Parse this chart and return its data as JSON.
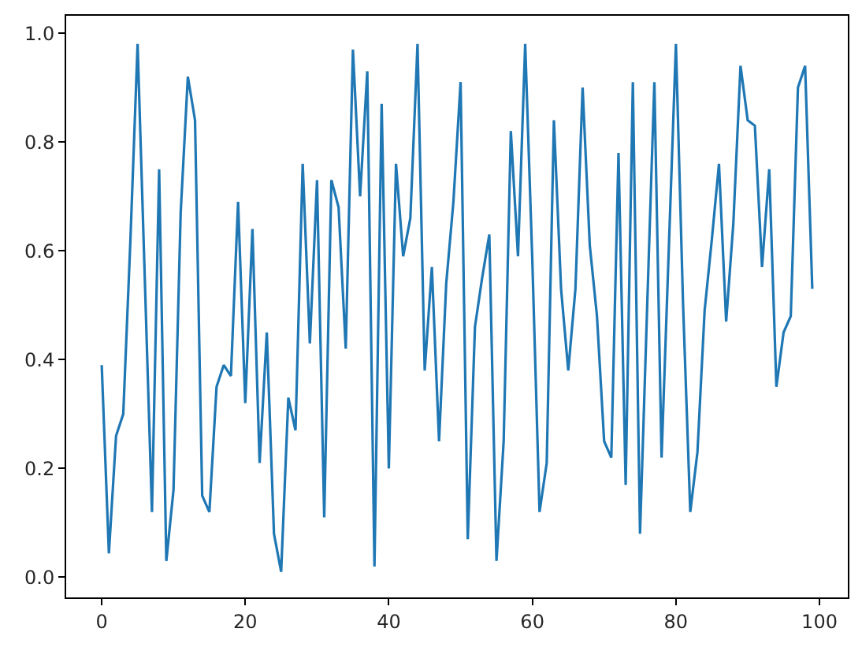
{
  "chart_data": {
    "type": "line",
    "x": [
      0,
      1,
      2,
      3,
      4,
      5,
      6,
      7,
      8,
      9,
      10,
      11,
      12,
      13,
      14,
      15,
      16,
      17,
      18,
      19,
      20,
      21,
      22,
      23,
      24,
      25,
      26,
      27,
      28,
      29,
      30,
      31,
      32,
      33,
      34,
      35,
      36,
      37,
      38,
      39,
      40,
      41,
      42,
      43,
      44,
      45,
      46,
      47,
      48,
      49,
      50,
      51,
      52,
      53,
      54,
      55,
      56,
      57,
      58,
      59,
      60,
      61,
      62,
      63,
      64,
      65,
      66,
      67,
      68,
      69,
      70,
      71,
      72,
      73,
      74,
      75,
      76,
      77,
      78,
      79,
      80,
      81,
      82,
      83,
      84,
      85,
      86,
      87,
      88,
      89,
      90,
      91,
      92,
      93,
      94,
      95,
      96,
      97,
      98,
      99
    ],
    "series": [
      {
        "color": "#1f77b4",
        "values": [
          0.39,
          0.044,
          0.26,
          0.3,
          0.62,
          0.98,
          0.55,
          0.12,
          0.75,
          0.03,
          0.16,
          0.67,
          0.92,
          0.84,
          0.15,
          0.12,
          0.35,
          0.39,
          0.37,
          0.69,
          0.32,
          0.64,
          0.21,
          0.45,
          0.08,
          0.01,
          0.33,
          0.27,
          0.76,
          0.43,
          0.73,
          0.11,
          0.73,
          0.68,
          0.42,
          0.97,
          0.7,
          0.93,
          0.02,
          0.87,
          0.2,
          0.76,
          0.59,
          0.66,
          0.98,
          0.38,
          0.57,
          0.25,
          0.54,
          0.69,
          0.91,
          0.07,
          0.46,
          0.55,
          0.63,
          0.03,
          0.25,
          0.82,
          0.59,
          0.98,
          0.58,
          0.12,
          0.21,
          0.84,
          0.53,
          0.38,
          0.53,
          0.9,
          0.61,
          0.48,
          0.25,
          0.22,
          0.78,
          0.17,
          0.91,
          0.08,
          0.5,
          0.91,
          0.22,
          0.6,
          0.98,
          0.5,
          0.12,
          0.23,
          0.49,
          0.62,
          0.76,
          0.47,
          0.65,
          0.94,
          0.84,
          0.83,
          0.57,
          0.75,
          0.35,
          0.45,
          0.48,
          0.9,
          0.94,
          0.53
        ]
      }
    ],
    "xlim": [
      -4.95,
      103.95
    ],
    "ylim": [
      -0.037,
      1.032
    ],
    "xticks": [
      0,
      20,
      40,
      60,
      80,
      100
    ],
    "yticks": [
      {
        "value": 0,
        "label": "0.0"
      },
      0.2,
      0.4,
      0.6,
      0.8,
      {
        "value": 1,
        "label": "1.0"
      }
    ],
    "line_style": "solid"
  }
}
